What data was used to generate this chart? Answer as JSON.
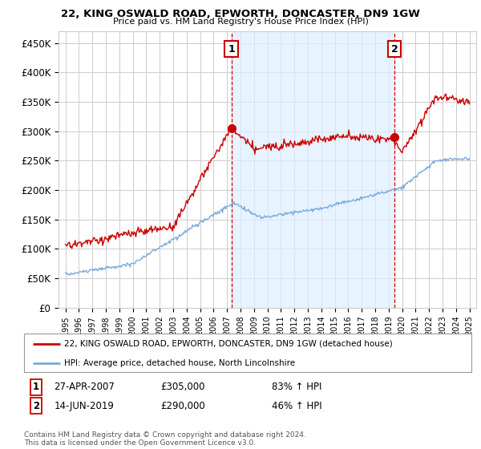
{
  "title1": "22, KING OSWALD ROAD, EPWORTH, DONCASTER, DN9 1GW",
  "title2": "Price paid vs. HM Land Registry's House Price Index (HPI)",
  "ylabel_ticks": [
    "£0",
    "£50K",
    "£100K",
    "£150K",
    "£200K",
    "£250K",
    "£300K",
    "£350K",
    "£400K",
    "£450K"
  ],
  "ytick_values": [
    0,
    50000,
    100000,
    150000,
    200000,
    250000,
    300000,
    350000,
    400000,
    450000
  ],
  "ylim": [
    0,
    470000
  ],
  "xlim_start": 1994.5,
  "xlim_end": 2025.5,
  "red_color": "#cc0000",
  "blue_color": "#7aaadd",
  "shade_color": "#ddeeff",
  "marker1_x": 2007.32,
  "marker1_y": 305000,
  "marker2_x": 2019.45,
  "marker2_y": 290000,
  "annotation1": "27-APR-2007",
  "annotation1_price": "£305,000",
  "annotation1_hpi": "83% ↑ HPI",
  "annotation2": "14-JUN-2019",
  "annotation2_price": "£290,000",
  "annotation2_hpi": "46% ↑ HPI",
  "legend_line1": "22, KING OSWALD ROAD, EPWORTH, DONCASTER, DN9 1GW (detached house)",
  "legend_line2": "HPI: Average price, detached house, North Lincolnshire",
  "footer": "Contains HM Land Registry data © Crown copyright and database right 2024.\nThis data is licensed under the Open Government Licence v3.0.",
  "background_color": "#ffffff",
  "grid_color": "#cccccc"
}
